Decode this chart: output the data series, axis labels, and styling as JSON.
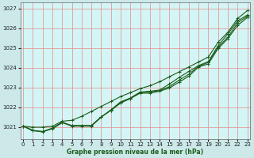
{
  "bg_color": "#cce8e8",
  "plot_bg_color": "#d4f5f5",
  "grid_color": "#e88888",
  "line_color": "#1a5c1a",
  "xlabel": "Graphe pression niveau de la mer (hPa)",
  "ylim": [
    1020.4,
    1027.3
  ],
  "xlim": [
    -0.3,
    23.3
  ],
  "yticks": [
    1021,
    1022,
    1023,
    1024,
    1025,
    1026,
    1027
  ],
  "xticks": [
    0,
    1,
    2,
    3,
    4,
    5,
    6,
    7,
    8,
    9,
    10,
    11,
    12,
    13,
    14,
    15,
    16,
    17,
    18,
    19,
    20,
    21,
    22,
    23
  ],
  "series": [
    [
      1021.05,
      1020.85,
      1020.75,
      1020.95,
      1021.25,
      1021.08,
      1021.08,
      1021.08,
      1021.52,
      1021.85,
      1022.22,
      1022.45,
      1022.72,
      1022.72,
      1022.82,
      1022.98,
      1023.28,
      1023.58,
      1024.05,
      1024.2,
      1024.98,
      1025.48,
      1026.15,
      1026.55
    ],
    [
      1021.05,
      1020.82,
      1020.78,
      1020.92,
      1021.22,
      1021.08,
      1021.08,
      1021.08,
      1021.52,
      1021.85,
      1022.25,
      1022.45,
      1022.75,
      1022.78,
      1022.85,
      1023.05,
      1023.38,
      1023.68,
      1024.08,
      1024.28,
      1025.05,
      1025.55,
      1026.28,
      1026.62
    ],
    [
      1021.05,
      1020.82,
      1020.78,
      1020.95,
      1021.25,
      1021.05,
      1021.05,
      1021.05,
      1021.5,
      1021.88,
      1022.28,
      1022.48,
      1022.78,
      1022.82,
      1022.88,
      1023.18,
      1023.52,
      1023.82,
      1024.12,
      1024.32,
      1025.12,
      1025.72,
      1026.38,
      1026.68
    ],
    [
      1021.05,
      1021.0,
      1021.0,
      1021.05,
      1021.3,
      1021.35,
      1021.55,
      1021.8,
      1022.05,
      1022.3,
      1022.55,
      1022.75,
      1022.95,
      1023.1,
      1023.3,
      1023.55,
      1023.8,
      1024.05,
      1024.3,
      1024.55,
      1025.3,
      1025.8,
      1026.5,
      1026.9
    ]
  ]
}
